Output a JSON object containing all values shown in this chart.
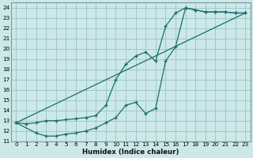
{
  "xlabel": "Humidex (Indice chaleur)",
  "bg_color": "#cce8e8",
  "grid_color": "#a0c8c8",
  "line_color": "#1a6e6e",
  "xlim": [
    -0.5,
    23.5
  ],
  "ylim": [
    11,
    24.5
  ],
  "xticks": [
    0,
    1,
    2,
    3,
    4,
    5,
    6,
    7,
    8,
    9,
    10,
    11,
    12,
    13,
    14,
    15,
    16,
    17,
    18,
    19,
    20,
    21,
    22,
    23
  ],
  "yticks": [
    11,
    12,
    13,
    14,
    15,
    16,
    17,
    18,
    19,
    20,
    21,
    22,
    23,
    24
  ],
  "series": [
    {
      "x": [
        0,
        1,
        2,
        3,
        4,
        5,
        6,
        7,
        8,
        9,
        10,
        11,
        12,
        13,
        14,
        15,
        16,
        17,
        18,
        19,
        20,
        21,
        22,
        23
      ],
      "y": [
        12.8,
        12.7,
        12.8,
        13.0,
        13.0,
        13.1,
        13.2,
        13.3,
        13.5,
        14.5,
        17.0,
        18.5,
        19.3,
        19.7,
        18.8,
        22.2,
        23.5,
        24.0,
        23.8,
        23.6,
        23.6,
        23.6,
        23.5,
        23.5
      ],
      "has_markers": true
    },
    {
      "x": [
        0,
        2,
        3,
        4,
        5,
        6,
        7,
        8,
        9,
        10,
        11,
        12,
        13,
        14,
        15,
        16,
        17,
        18,
        19,
        20,
        21,
        22,
        23
      ],
      "y": [
        12.8,
        11.8,
        11.5,
        11.5,
        11.7,
        11.8,
        12.0,
        12.3,
        12.8,
        13.3,
        14.5,
        14.8,
        13.7,
        14.2,
        18.8,
        20.2,
        24.0,
        23.8,
        23.6,
        23.6,
        23.6,
        23.5,
        23.5
      ],
      "has_markers": true
    },
    {
      "x": [
        0,
        23
      ],
      "y": [
        12.8,
        23.5
      ],
      "has_markers": false
    }
  ]
}
